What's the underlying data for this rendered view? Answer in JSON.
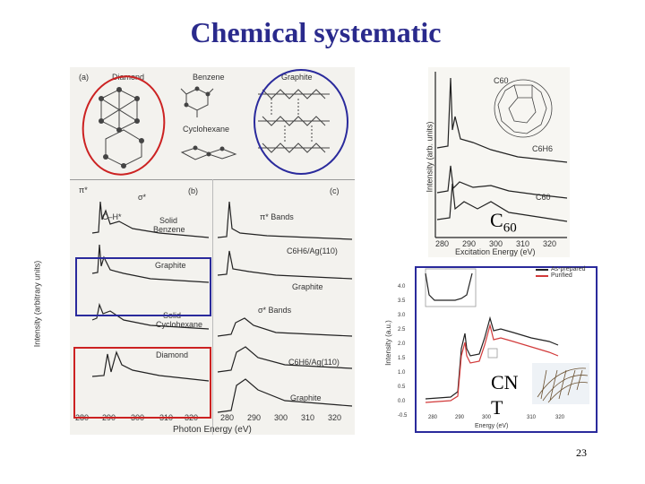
{
  "title": "Chemical systematic",
  "slide_number": "23",
  "overlays": {
    "c60": "C60",
    "c60_base": "C",
    "c60_sub": "60",
    "cnt_line1": "CN",
    "cnt_line2": "T"
  },
  "left_figure": {
    "panel_a": "(a)",
    "panel_b": "(b)",
    "panel_c": "(c)",
    "diamond": "Diamond",
    "benzene": "Benzene",
    "graphite": "Graphite",
    "cyclohexane": "Cyclohexane",
    "pi_star": "π*",
    "sigma_star": "σ*",
    "c_h_star": "C–H*",
    "solid_benzene_1": "Solid",
    "solid_benzene_2": "Benzene",
    "graphite_b": "Graphite",
    "solid_cyclo_1": "Solid",
    "solid_cyclo_2": "Cyclohexane",
    "diamond_b": "Diamond",
    "pi_bands": "π* Bands",
    "c6h6_ag_1": "C6H6/Ag(110)",
    "graphite_c1": "Graphite",
    "sigma_bands": "σ* Bands",
    "c6h6_ag_2": "C6H6/Ag(110)",
    "graphite_c2": "Graphite",
    "y_label": "Intensity (arbitrary units)",
    "x_label": "Photon Energy (eV)",
    "x_ticks_b": [
      "280",
      "290",
      "300",
      "310",
      "320"
    ],
    "x_ticks_c": [
      "280",
      "290",
      "300",
      "310",
      "320"
    ]
  },
  "top_right_figure": {
    "c60_label": "C60",
    "c6h6_label": "C6H6",
    "c60_bottom": "C60",
    "y_label": "Intensity (arb. units)",
    "x_label": "Excitation Energy (eV)",
    "x_ticks": [
      "280",
      "290",
      "300",
      "310",
      "320"
    ]
  },
  "bottom_right_figure": {
    "legend": [
      "As-prepared",
      "Purified"
    ],
    "y_label": "Intensity (a.u.)",
    "x_label": "Energy (eV)",
    "y_ticks": [
      "4.0",
      "3.5",
      "3.0",
      "2.5",
      "2.0",
      "1.5",
      "1.0",
      "0.5",
      "0.0",
      "-0.5"
    ],
    "x_ticks": [
      "280",
      "290",
      "300",
      "310",
      "320"
    ],
    "colors": {
      "as_prepared": "#222222",
      "purified": "#d23a3a"
    }
  },
  "colors": {
    "title": "#2a2a8c",
    "red_box": "#cc2222",
    "blue_box": "#2a2a9c"
  }
}
